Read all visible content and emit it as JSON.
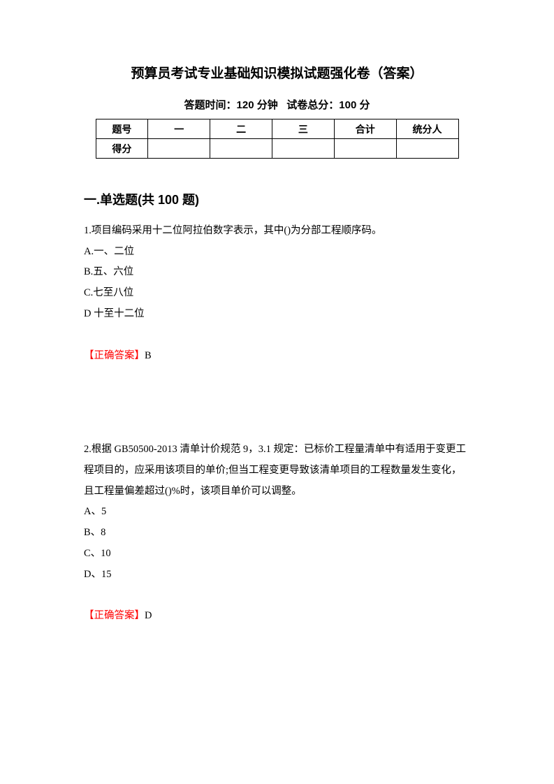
{
  "title": "预算员考试专业基础知识模拟试题强化卷（答案）",
  "subtitle_time_label": "答题时间：",
  "subtitle_time_value": "120 分钟",
  "subtitle_score_label": "试卷总分：",
  "subtitle_score_value": "100 分",
  "table": {
    "row1": {
      "label": "题号",
      "cols": [
        "一",
        "二",
        "三",
        "合计",
        "统分人"
      ]
    },
    "row2": {
      "label": "得分",
      "cols": [
        "",
        "",
        "",
        "",
        ""
      ]
    }
  },
  "section_heading": "一.单选题(共 100 题)",
  "q1": {
    "text": "1.项目编码采用十二位阿拉伯数字表示，其中()为分部工程顺序码。",
    "optA": "A.一、二位",
    "optB": "B.五、六位",
    "optC": "C.七至八位",
    "optD": "D 十至十二位",
    "answer_label": "【正确答案】",
    "answer_value": "B"
  },
  "q2": {
    "text": "2.根据 GB50500-2013 清单计价规范 9，3.1 规定：已标价工程量清单中有适用于变更工程项目的，应采用该项目的单价;但当工程变更导致该清单项目的工程数量发生变化，且工程量偏差超过()%时，该项目单价可以调整。",
    "optA": "A、5",
    "optB": "B、8",
    "optC": "C、10",
    "optD": "D、15",
    "answer_label": "【正确答案】",
    "answer_value": "D"
  }
}
